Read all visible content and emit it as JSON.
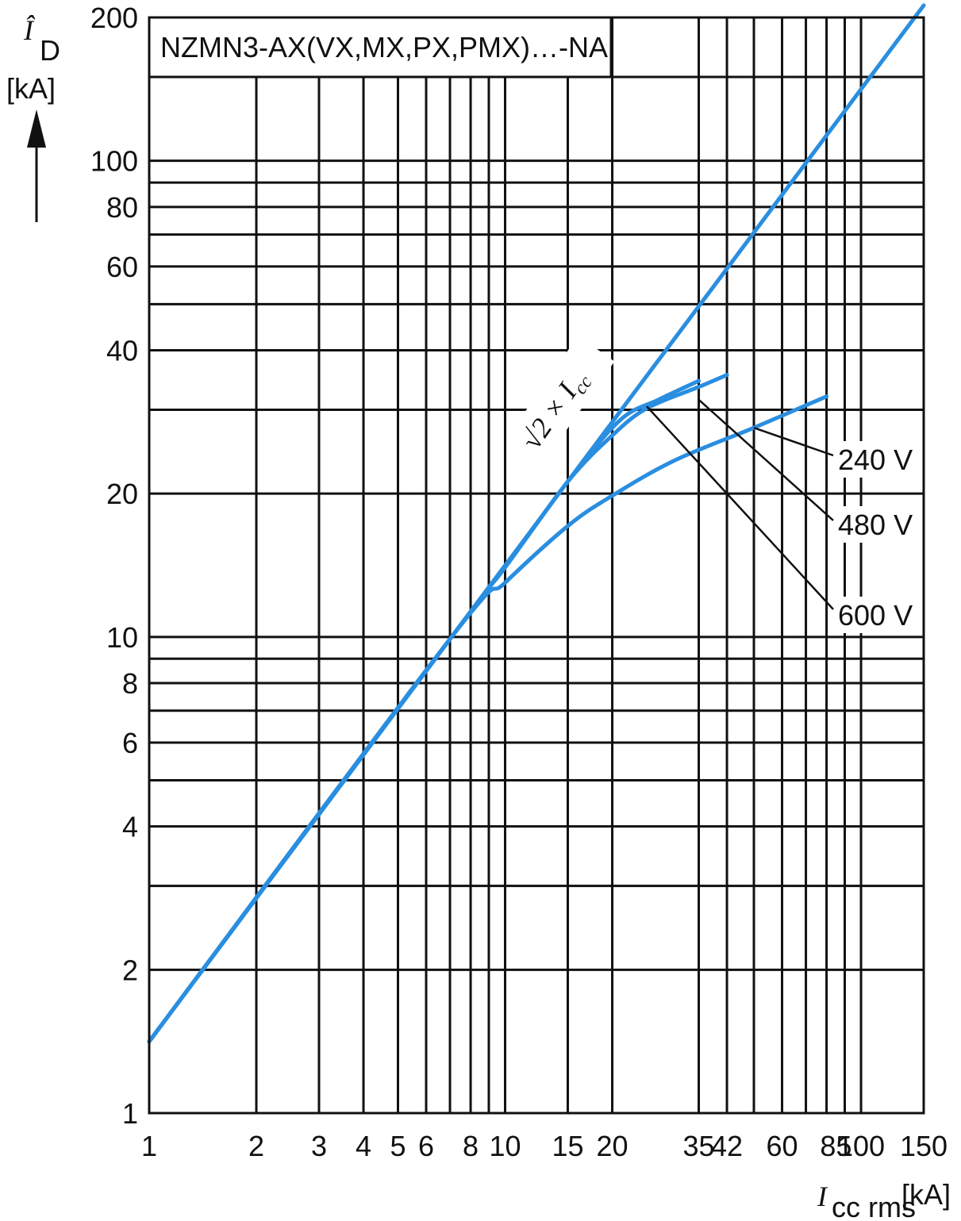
{
  "chart_data": {
    "type": "line",
    "title": "NZMN3-AX(VX,MX,PX,PMX)…-NA",
    "ylabel": {
      "symbol": "Î",
      "subscript": "D",
      "unit": "[kA]"
    },
    "xlabel": {
      "symbol": "I",
      "subscript": "cc rms",
      "unit": "[kA]"
    },
    "x_scale": "log",
    "y_scale": "log",
    "xlim": [
      1,
      150
    ],
    "ylim": [
      1,
      200
    ],
    "x_ticks": [
      {
        "v": 1,
        "label": "1"
      },
      {
        "v": 2,
        "label": "2"
      },
      {
        "v": 3,
        "label": "3"
      },
      {
        "v": 4,
        "label": "4"
      },
      {
        "v": 5,
        "label": "5"
      },
      {
        "v": 6,
        "label": "6"
      },
      {
        "v": 8,
        "label": "8"
      },
      {
        "v": 10,
        "label": "10"
      },
      {
        "v": 15,
        "label": "15"
      },
      {
        "v": 20,
        "label": "20"
      },
      {
        "v": 35,
        "label": "35"
      },
      {
        "v": 42,
        "label": "42"
      },
      {
        "v": 60,
        "label": "60"
      },
      {
        "v": 85,
        "label": "85"
      },
      {
        "v": 100,
        "label": "100"
      },
      {
        "v": 150,
        "label": "150"
      }
    ],
    "x_gridlines": [
      2,
      3,
      4,
      5,
      6,
      7,
      8,
      9,
      10,
      15,
      20,
      35,
      42,
      50,
      60,
      70,
      80,
      90,
      100
    ],
    "y_ticks": [
      {
        "v": 1,
        "label": "1"
      },
      {
        "v": 2,
        "label": "2"
      },
      {
        "v": 4,
        "label": "4"
      },
      {
        "v": 6,
        "label": "6"
      },
      {
        "v": 8,
        "label": "8"
      },
      {
        "v": 10,
        "label": "10"
      },
      {
        "v": 20,
        "label": "20"
      },
      {
        "v": 40,
        "label": "40"
      },
      {
        "v": 60,
        "label": "60"
      },
      {
        "v": 80,
        "label": "80"
      },
      {
        "v": 100,
        "label": "100"
      },
      {
        "v": 200,
        "label": "200"
      }
    ],
    "y_gridlines": [
      2,
      3,
      4,
      5,
      6,
      7,
      8,
      9,
      10,
      20,
      30,
      40,
      50,
      60,
      70,
      80,
      90,
      100,
      150
    ],
    "grid": true,
    "series": [
      {
        "name": "√2 × Icc",
        "x": [
          1,
          150
        ],
        "y": [
          1.414,
          212
        ]
      },
      {
        "name": "240 V",
        "x": [
          1,
          7,
          10,
          15,
          20,
          30,
          50,
          80
        ],
        "y": [
          1.414,
          9.9,
          13,
          17.1,
          19.8,
          23.5,
          27.5,
          32
        ]
      },
      {
        "name": "480 V",
        "x": [
          1,
          7,
          10,
          15,
          20,
          25,
          35,
          42
        ],
        "y": [
          1.414,
          9.9,
          14,
          21.2,
          26.5,
          30.2,
          33.5,
          35.5
        ]
      },
      {
        "name": "600 V",
        "x": [
          1,
          7,
          10,
          15,
          21,
          27,
          35
        ],
        "y": [
          1.414,
          9.9,
          14,
          21.2,
          28.5,
          31.5,
          34.5
        ]
      }
    ],
    "annotations": [
      {
        "text": "√2 × I",
        "subscript": "cc"
      },
      {
        "text": "240 V"
      },
      {
        "text": "480 V"
      },
      {
        "text": "600 V"
      }
    ],
    "colors": {
      "curve": "#2a8ee0",
      "grid": "#111111"
    }
  }
}
